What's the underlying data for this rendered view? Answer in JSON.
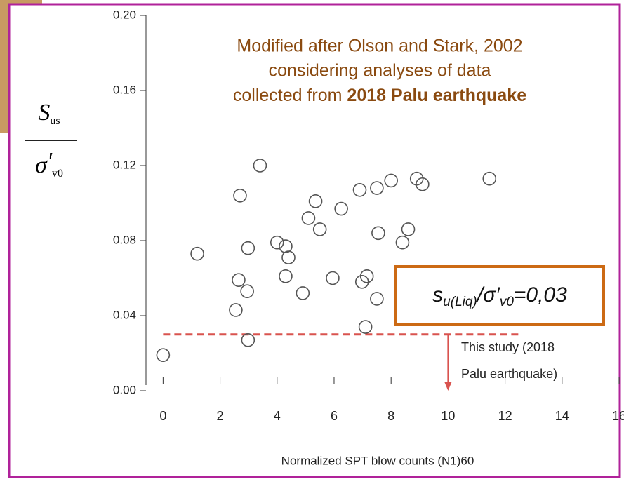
{
  "chart_data": {
    "type": "scatter",
    "title_lines": [
      "Modified after Olson and Stark, 2002",
      "considering analyses of data"
    ],
    "title_last_line": {
      "plain": "collected from ",
      "bold": "2018 Palu earthquake"
    },
    "ylabel": {
      "top": "S",
      "top_sub": "us",
      "bottom": "σ",
      "bottom_prime": "'",
      "bottom_sub": "v0"
    },
    "xlabel": "Normalized SPT blow counts (N1)60",
    "x": [
      0,
      1.2,
      3.4,
      2.7,
      2.55,
      2.65,
      2.95,
      2.98,
      2.98,
      4.0,
      4.3,
      4.4,
      4.3,
      4.9,
      5.1,
      5.35,
      5.5,
      6.25,
      5.95,
      6.9,
      7.5,
      8.0,
      6.98,
      7.15,
      7.1,
      7.5,
      7.55,
      8.4,
      8.6,
      8.9,
      9.1,
      11.45
    ],
    "values": [
      0.019,
      0.073,
      0.12,
      0.104,
      0.043,
      0.059,
      0.053,
      0.076,
      0.027,
      0.079,
      0.077,
      0.071,
      0.061,
      0.052,
      0.092,
      0.101,
      0.086,
      0.097,
      0.06,
      0.107,
      0.108,
      0.112,
      0.058,
      0.061,
      0.034,
      0.049,
      0.084,
      0.079,
      0.086,
      0.113,
      0.11,
      0.113
    ],
    "xlim": [
      -0.6,
      16
    ],
    "ylim": [
      0,
      0.2
    ],
    "xticks": [
      0,
      2,
      4,
      6,
      8,
      10,
      12,
      14,
      16
    ],
    "yticks": [
      {
        "value": 0,
        "label": "0.00"
      },
      {
        "value": 0.04,
        "label": "0.04"
      },
      {
        "value": 0.08,
        "label": "0.08"
      },
      {
        "value": 0.12,
        "label": "0.12"
      },
      {
        "value": 0.16,
        "label": "0.16"
      },
      {
        "value": 0.2,
        "label": "0.20"
      }
    ],
    "threshold": {
      "y": 0.03,
      "x": [
        0,
        12.5
      ],
      "color": "#d9534f"
    },
    "arrow": {
      "x": 10,
      "y": [
        0.03,
        0
      ]
    },
    "study_label": [
      "This study (2018",
      "Palu earthquake)"
    ],
    "box_label": {
      "s": "s",
      "s_sub": "u(Liq)",
      "mid": "/σ′",
      "mid_sub": "v0",
      "end": "=0,03"
    },
    "color": "#555555",
    "box_color": "#cc6a14",
    "title_color": "#8a4a10",
    "frame_color": "#b0229a"
  }
}
